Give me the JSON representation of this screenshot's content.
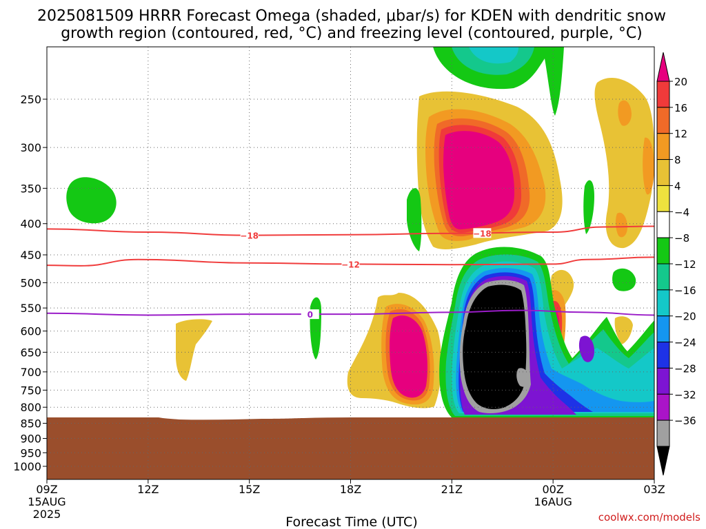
{
  "chart_data": {
    "type": "heatmap",
    "title_line1": "2025081509 HRRR Forecast Omega (shaded, μbar/s) for KDEN with dendritic snow",
    "title_line2": "growth region (contoured, red, °C) and freezing level (contoured, purple, °C)",
    "xlabel": "Forecast Time (UTC)",
    "credit": "coolwx.com/models",
    "x_ticks": [
      {
        "label": "09Z",
        "hour": 0,
        "date1": "15AUG",
        "date2": "2025"
      },
      {
        "label": "12Z",
        "hour": 3
      },
      {
        "label": "15Z",
        "hour": 6
      },
      {
        "label": "18Z",
        "hour": 9
      },
      {
        "label": "21Z",
        "hour": 12
      },
      {
        "label": "00Z",
        "hour": 15,
        "date1": "16AUG"
      },
      {
        "label": "03Z",
        "hour": 18
      }
    ],
    "y_ticks": [
      "250",
      "300",
      "350",
      "400",
      "450",
      "500",
      "550",
      "600",
      "650",
      "700",
      "750",
      "800",
      "850",
      "900",
      "950",
      "1000"
    ],
    "y_tick_values": [
      250,
      300,
      350,
      400,
      450,
      500,
      550,
      600,
      650,
      700,
      750,
      800,
      850,
      900,
      950,
      1000
    ],
    "colorbar": {
      "labels": [
        "20",
        "16",
        "12",
        "8",
        "4",
        "−4",
        "−8",
        "−12",
        "−16",
        "−20",
        "−24",
        "−28",
        "−32",
        "−36"
      ],
      "colors": [
        "#e6007e",
        "#f03a3a",
        "#f06a28",
        "#f29a22",
        "#e8c235",
        "#eee23e",
        "#ffffff",
        "#14c814",
        "#14c88c",
        "#14c8c8",
        "#1496f0",
        "#1e32e6",
        "#7d14d2",
        "#aa14c8",
        "#a0a0a0",
        "#000000"
      ]
    },
    "contours": [
      {
        "label": "−18",
        "color": "#f03c3c",
        "points": [
          [
            0,
            408
          ],
          [
            3,
            413
          ],
          [
            6,
            418
          ],
          [
            9,
            417
          ],
          [
            12,
            415
          ],
          [
            15,
            413
          ],
          [
            16.5,
            405
          ],
          [
            18,
            404
          ]
        ]
      },
      {
        "label": "−12",
        "color": "#f03c3c",
        "points": [
          [
            0,
            468
          ],
          [
            1,
            469
          ],
          [
            2.7,
            458
          ],
          [
            6,
            464
          ],
          [
            9,
            466
          ],
          [
            12,
            467
          ],
          [
            15,
            466
          ],
          [
            16,
            458
          ],
          [
            18,
            454
          ]
        ]
      },
      {
        "label": "0",
        "color": "#9a1cc8",
        "points": [
          [
            0,
            561
          ],
          [
            3,
            565
          ],
          [
            6,
            563
          ],
          [
            9,
            563
          ],
          [
            12,
            559
          ],
          [
            14,
            555
          ],
          [
            16,
            559
          ],
          [
            18,
            565
          ]
        ]
      }
    ],
    "ground_pressure": 835
  }
}
